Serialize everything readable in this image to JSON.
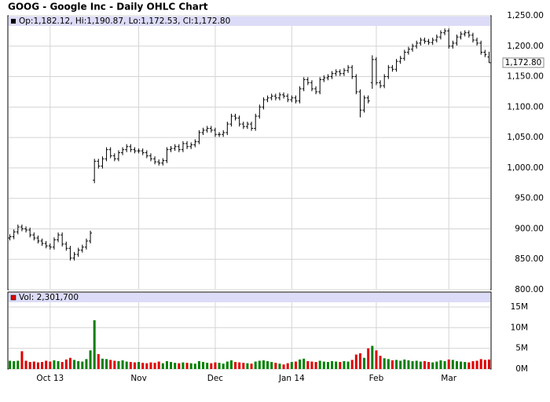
{
  "chart_data": {
    "type": "ohlc",
    "title": "GOOG - Google Inc - Daily OHLC Chart",
    "legend": "Op:1,182.12, Hi:1,190.87, Lo:1,172.53, Cl:1,172.80",
    "last_label": "1,172.80",
    "grid": true,
    "bar_color": "#000000",
    "categories": [
      null,
      null,
      null,
      null,
      null,
      null,
      null,
      null,
      null,
      null,
      "Oct 13",
      null,
      null,
      null,
      null,
      null,
      null,
      null,
      null,
      null,
      null,
      null,
      null,
      null,
      null,
      null,
      null,
      null,
      null,
      null,
      null,
      null,
      "Nov",
      null,
      null,
      null,
      null,
      null,
      null,
      null,
      null,
      null,
      null,
      null,
      null,
      null,
      null,
      null,
      null,
      null,
      null,
      "Dec",
      null,
      null,
      null,
      null,
      null,
      null,
      null,
      null,
      null,
      null,
      null,
      null,
      null,
      null,
      null,
      null,
      null,
      null,
      "Jan 14",
      null,
      null,
      null,
      null,
      null,
      null,
      null,
      null,
      null,
      null,
      null,
      null,
      null,
      null,
      null,
      null,
      null,
      null,
      null,
      null,
      "Feb",
      null,
      null,
      null,
      null,
      null,
      null,
      null,
      null,
      null,
      null,
      null,
      null,
      null,
      null,
      null,
      null,
      null,
      "Mar",
      null,
      null,
      null,
      null,
      null,
      null,
      null,
      null,
      null,
      null
    ],
    "open": [
      885,
      887,
      895,
      903,
      900,
      898,
      890,
      885,
      880,
      876,
      872,
      870,
      882,
      890,
      875,
      868,
      852,
      858,
      865,
      870,
      880,
      980,
      1011,
      1003,
      1015,
      1030,
      1020,
      1015,
      1025,
      1030,
      1035,
      1030,
      1028,
      1028,
      1025,
      1020,
      1015,
      1010,
      1008,
      1012,
      1030,
      1032,
      1035,
      1030,
      1040,
      1035,
      1038,
      1043,
      1058,
      1062,
      1065,
      1062,
      1055,
      1055,
      1058,
      1072,
      1085,
      1082,
      1072,
      1068,
      1072,
      1065,
      1085,
      1100,
      1112,
      1115,
      1118,
      1115,
      1120,
      1118,
      1112,
      1115,
      1110,
      1130,
      1145,
      1140,
      1130,
      1125,
      1145,
      1148,
      1150,
      1155,
      1158,
      1155,
      1160,
      1165,
      1150,
      1125,
      1095,
      1115,
      1140,
      1178,
      1140,
      1135,
      1150,
      1165,
      1162,
      1175,
      1180,
      1190,
      1195,
      1200,
      1205,
      1210,
      1208,
      1206,
      1210,
      1215,
      1222,
      1225,
      1200,
      1205,
      1215,
      1220,
      1222,
      1218,
      1210,
      1205,
      1190,
      1182.12
    ],
    "high": [
      891,
      899,
      907,
      907,
      904,
      902,
      894,
      889,
      884,
      880,
      876,
      886,
      894,
      894,
      879,
      872,
      862,
      869,
      874,
      884,
      897,
      1015,
      1015,
      1019,
      1034,
      1034,
      1024,
      1029,
      1034,
      1039,
      1039,
      1034,
      1032,
      1032,
      1029,
      1024,
      1019,
      1014,
      1016,
      1034,
      1036,
      1039,
      1039,
      1044,
      1044,
      1042,
      1047,
      1062,
      1066,
      1069,
      1069,
      1066,
      1059,
      1062,
      1076,
      1089,
      1089,
      1086,
      1076,
      1076,
      1076,
      1089,
      1104,
      1116,
      1119,
      1122,
      1122,
      1124,
      1124,
      1122,
      1119,
      1119,
      1134,
      1149,
      1149,
      1144,
      1134,
      1149,
      1152,
      1154,
      1159,
      1162,
      1162,
      1164,
      1169,
      1169,
      1154,
      1129,
      1119,
      1119,
      1185,
      1182,
      1144,
      1154,
      1169,
      1169,
      1179,
      1184,
      1194,
      1199,
      1204,
      1209,
      1214,
      1214,
      1212,
      1214,
      1219,
      1226,
      1229,
      1229,
      1209,
      1219,
      1224,
      1226,
      1226,
      1222,
      1214,
      1209,
      1194,
      1190.87
    ],
    "low": [
      881,
      883,
      891,
      896,
      894,
      886,
      881,
      876,
      872,
      868,
      866,
      866,
      878,
      871,
      864,
      848,
      848,
      854,
      861,
      866,
      876,
      975,
      999,
      999,
      1011,
      1016,
      1011,
      1011,
      1021,
      1026,
      1026,
      1024,
      1024,
      1021,
      1016,
      1011,
      1006,
      1004,
      1004,
      1008,
      1026,
      1028,
      1026,
      1026,
      1031,
      1031,
      1034,
      1039,
      1054,
      1058,
      1058,
      1051,
      1051,
      1051,
      1054,
      1068,
      1078,
      1068,
      1064,
      1064,
      1061,
      1061,
      1081,
      1096,
      1108,
      1111,
      1111,
      1111,
      1114,
      1108,
      1108,
      1106,
      1106,
      1126,
      1136,
      1126,
      1121,
      1121,
      1141,
      1144,
      1146,
      1151,
      1151,
      1151,
      1156,
      1146,
      1121,
      1083,
      1091,
      1106,
      1130,
      1136,
      1131,
      1131,
      1146,
      1158,
      1158,
      1171,
      1176,
      1186,
      1191,
      1196,
      1201,
      1204,
      1202,
      1202,
      1206,
      1211,
      1218,
      1196,
      1196,
      1201,
      1211,
      1216,
      1214,
      1206,
      1201,
      1186,
      1182,
      1172.53
    ],
    "close": [
      887,
      895,
      903,
      900,
      898,
      890,
      885,
      880,
      876,
      872,
      870,
      882,
      890,
      875,
      868,
      852,
      858,
      865,
      870,
      880,
      893,
      1011,
      1003,
      1015,
      1030,
      1020,
      1015,
      1025,
      1030,
      1035,
      1030,
      1028,
      1028,
      1025,
      1020,
      1015,
      1010,
      1008,
      1012,
      1030,
      1032,
      1035,
      1030,
      1040,
      1035,
      1038,
      1043,
      1058,
      1062,
      1065,
      1062,
      1055,
      1055,
      1058,
      1072,
      1085,
      1082,
      1072,
      1068,
      1072,
      1065,
      1085,
      1100,
      1112,
      1115,
      1118,
      1115,
      1120,
      1118,
      1112,
      1115,
      1110,
      1130,
      1145,
      1140,
      1130,
      1125,
      1145,
      1148,
      1150,
      1155,
      1158,
      1155,
      1160,
      1165,
      1150,
      1125,
      1095,
      1115,
      1110,
      1178,
      1140,
      1135,
      1150,
      1165,
      1162,
      1175,
      1180,
      1190,
      1195,
      1200,
      1205,
      1210,
      1208,
      1206,
      1210,
      1215,
      1222,
      1225,
      1200,
      1205,
      1215,
      1220,
      1222,
      1218,
      1210,
      1205,
      1190,
      1186,
      1172.8
    ],
    "ylim": [
      800,
      1250
    ],
    "yticks": [
      {
        "value": 800,
        "label": "800.00"
      },
      {
        "value": 850,
        "label": "850.00"
      },
      {
        "value": 900,
        "label": "900.00"
      },
      {
        "value": 950,
        "label": "950.00"
      },
      {
        "value": 1000,
        "label": "1,000.00"
      },
      {
        "value": 1050,
        "label": "1,050.00"
      },
      {
        "value": 1100,
        "label": "1,100.00"
      },
      {
        "value": 1150,
        "label": "1,150.00"
      },
      {
        "value": 1200,
        "label": "1,200.00"
      },
      {
        "value": 1250,
        "label": "1,250.00"
      }
    ],
    "volume": {
      "label": "Vol: 2,301,700",
      "up_color": "#008000",
      "down_color": "#e00000",
      "values": [
        2000000,
        1900000,
        2000000,
        4300000,
        2000000,
        1700000,
        1800000,
        1600000,
        1700000,
        2000000,
        1800000,
        2100000,
        1900000,
        1700000,
        2300000,
        2700000,
        2200000,
        1900000,
        1800000,
        2400000,
        4500000,
        11800000,
        3600000,
        2500000,
        2400000,
        2200000,
        2000000,
        1900000,
        2100000,
        1800000,
        1700000,
        1600000,
        1700000,
        1500000,
        1400000,
        1600000,
        1500000,
        1800000,
        1400000,
        1900000,
        1700000,
        1500000,
        1400000,
        1600000,
        1500000,
        1400000,
        1300000,
        1900000,
        1700000,
        1500000,
        1400000,
        1600000,
        1500000,
        1300000,
        1800000,
        2100000,
        1700000,
        1600000,
        1500000,
        1400000,
        1300000,
        1800000,
        2000000,
        2100000,
        1900000,
        1700000,
        1500000,
        1300000,
        1100000,
        1400000,
        1700000,
        1800000,
        2300000,
        2500000,
        1900000,
        1800000,
        1700000,
        2000000,
        1800000,
        1700000,
        1900000,
        1800000,
        1700000,
        1900000,
        1800000,
        2200000,
        3500000,
        3800000,
        2700000,
        5000000,
        5600000,
        4500000,
        3200000,
        2600000,
        2400000,
        2100000,
        2200000,
        2000000,
        2300000,
        2100000,
        1900000,
        2000000,
        1800000,
        1900000,
        1700000,
        1600000,
        1800000,
        2100000,
        1900000,
        2300000,
        2200000,
        1900000,
        1800000,
        1700000,
        1600000,
        1900000,
        2000000,
        2400000,
        2200000,
        2301700
      ],
      "ylim": [
        0,
        18600000
      ],
      "yticks": [
        {
          "value": 0,
          "label": "0M"
        },
        {
          "value": 5000000,
          "label": "5M"
        },
        {
          "value": 10000000,
          "label": "10M"
        },
        {
          "value": 15000000,
          "label": "15M"
        }
      ]
    }
  }
}
